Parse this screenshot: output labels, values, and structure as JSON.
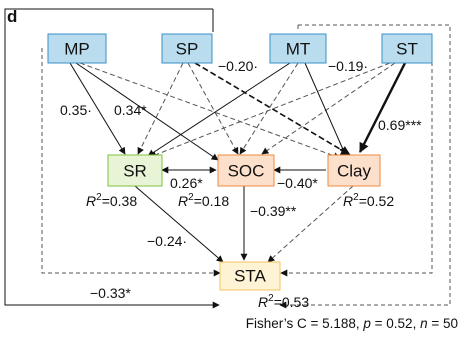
{
  "panel_label": "d",
  "colors": {
    "blue_fill": "#b9dcef",
    "blue_stroke": "#3a8fc4",
    "green_fill": "#e8f4d6",
    "green_stroke": "#7fbf3f",
    "orange_fill": "#fde0cc",
    "orange_stroke": "#f08a3c",
    "yellow_fill": "#fff3d6",
    "yellow_stroke": "#f2c35a",
    "line": "#111111",
    "dashed": "#555555"
  },
  "nodes": [
    {
      "id": "MP",
      "label": "MP",
      "style": "blue"
    },
    {
      "id": "SP",
      "label": "SP",
      "style": "blue"
    },
    {
      "id": "MT",
      "label": "MT",
      "style": "blue"
    },
    {
      "id": "ST",
      "label": "ST",
      "style": "blue"
    },
    {
      "id": "SR",
      "label": "SR",
      "style": "green"
    },
    {
      "id": "SOC",
      "label": "SOC",
      "style": "orange"
    },
    {
      "id": "Clay",
      "label": "Clay",
      "style": "orange"
    },
    {
      "id": "STA",
      "label": "STA",
      "style": "yellow"
    }
  ],
  "coefficients": {
    "sp_clay": "−0.20·",
    "mt_clay": "−0.19·",
    "mp_sr": "0.35·",
    "mp_clay": "0.34*",
    "st_clay": "0.69***",
    "sr_soc": "0.26*",
    "clay_soc": "−0.40*",
    "soc_sta": "−0.39**",
    "sr_sta": "−0.24·",
    "mp_sta": "−0.33*"
  },
  "r_squared": {
    "prefix": "R",
    "sup": "2",
    "SR": "=0.38",
    "SOC": "=0.18",
    "Clay": "=0.52",
    "STA": "=0.53"
  },
  "footer": {
    "prefix": "Fisher’s C = 5.188, ",
    "p_symbol": "p",
    "p_value": " = 0.52, ",
    "n_symbol": "n",
    "n_value": " = 50"
  }
}
